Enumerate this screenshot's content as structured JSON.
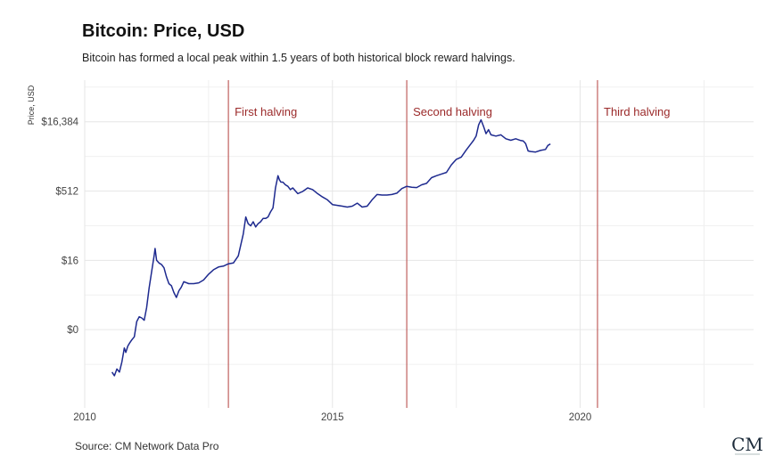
{
  "header": {
    "title": "Bitcoin: Price, USD",
    "subtitle": "Bitcoin has formed a local peak within 1.5 years of both historical block reward halvings."
  },
  "footer": {
    "source": "Source: CM Network Data Pro",
    "logo_text": "CM"
  },
  "colors": {
    "price_line": "#1e2a8f",
    "halving_line": "#c0605f",
    "halving_text": "#9b2a2a",
    "grid": "#e6e6e6"
  },
  "chart_data": {
    "type": "line",
    "title": "Bitcoin: Price, USD",
    "subtitle": "Bitcoin has formed a local peak within 1.5 years of both historical block reward halvings.",
    "xlabel": "",
    "ylabel": "Price, USD",
    "y_scale": "log2",
    "xlim": [
      2010,
      2023.5
    ],
    "ylim": [
      0.01,
      131072
    ],
    "x_ticks": [
      2010,
      2015,
      2020
    ],
    "x_tick_labels": [
      "2010",
      "2015",
      "2020"
    ],
    "y_ticks": [
      0.5,
      16,
      512,
      16384
    ],
    "y_tick_labels": [
      "$0",
      "$16",
      "$512",
      "$16,384"
    ],
    "grid": true,
    "annotations": [
      {
        "x": 2012.9,
        "label": "First halving"
      },
      {
        "x": 2016.5,
        "label": "Second halving"
      },
      {
        "x": 2020.35,
        "label": "Third halving"
      }
    ],
    "series": [
      {
        "x": [
          2010.55,
          2010.6,
          2010.65,
          2010.7,
          2010.75,
          2010.8,
          2010.83,
          2010.87,
          2010.9,
          2010.95,
          2011.0,
          2011.05,
          2011.1,
          2011.15,
          2011.2,
          2011.25,
          2011.3,
          2011.35,
          2011.4,
          2011.42,
          2011.45,
          2011.5,
          2011.55,
          2011.6,
          2011.65,
          2011.7,
          2011.75,
          2011.8,
          2011.85,
          2011.9,
          2011.95,
          2012.0,
          2012.1,
          2012.2,
          2012.3,
          2012.4,
          2012.5,
          2012.6,
          2012.7,
          2012.8,
          2012.9,
          2013.0,
          2013.1,
          2013.2,
          2013.25,
          2013.3,
          2013.35,
          2013.4,
          2013.45,
          2013.5,
          2013.55,
          2013.6,
          2013.65,
          2013.7,
          2013.75,
          2013.8,
          2013.85,
          2013.9,
          2013.93,
          2013.96,
          2014.0,
          2014.05,
          2014.1,
          2014.15,
          2014.2,
          2014.3,
          2014.4,
          2014.5,
          2014.6,
          2014.7,
          2014.8,
          2014.9,
          2015.0,
          2015.1,
          2015.2,
          2015.3,
          2015.4,
          2015.5,
          2015.6,
          2015.7,
          2015.8,
          2015.9,
          2016.0,
          2016.1,
          2016.2,
          2016.3,
          2016.4,
          2016.5,
          2016.6,
          2016.7,
          2016.8,
          2016.9,
          2017.0,
          2017.1,
          2017.2,
          2017.3,
          2017.4,
          2017.5,
          2017.6,
          2017.7,
          2017.8,
          2017.85,
          2017.9,
          2017.95,
          2018.0,
          2018.05,
          2018.1,
          2018.15,
          2018.2,
          2018.3,
          2018.4,
          2018.5,
          2018.6,
          2018.7,
          2018.8,
          2018.85,
          2018.9,
          2018.95,
          2019.0,
          2019.1,
          2019.2,
          2019.3,
          2019.35,
          2019.4
        ],
        "values": [
          0.06,
          0.05,
          0.07,
          0.06,
          0.1,
          0.2,
          0.16,
          0.22,
          0.25,
          0.3,
          0.35,
          0.75,
          0.95,
          0.9,
          0.8,
          1.5,
          4,
          9,
          20,
          29,
          16,
          14,
          13,
          11,
          7,
          5,
          4.5,
          3.2,
          2.5,
          3.5,
          4.2,
          5.5,
          5,
          5,
          5.2,
          6,
          8,
          10,
          11.5,
          12,
          13.5,
          14,
          20,
          60,
          140,
          100,
          90,
          110,
          85,
          100,
          110,
          130,
          130,
          140,
          180,
          220,
          600,
          1100,
          900,
          800,
          800,
          700,
          650,
          550,
          600,
          450,
          500,
          600,
          550,
          450,
          380,
          330,
          260,
          250,
          240,
          230,
          240,
          280,
          230,
          240,
          330,
          430,
          420,
          420,
          430,
          460,
          580,
          650,
          620,
          610,
          700,
          750,
          1000,
          1100,
          1200,
          1300,
          1900,
          2500,
          2800,
          4000,
          5500,
          6500,
          8000,
          14000,
          18000,
          13000,
          9000,
          11000,
          8500,
          8000,
          8500,
          7000,
          6500,
          7000,
          6400,
          6300,
          5500,
          3800,
          3700,
          3600,
          3900,
          4100,
          5000,
          5400
        ]
      }
    ]
  }
}
